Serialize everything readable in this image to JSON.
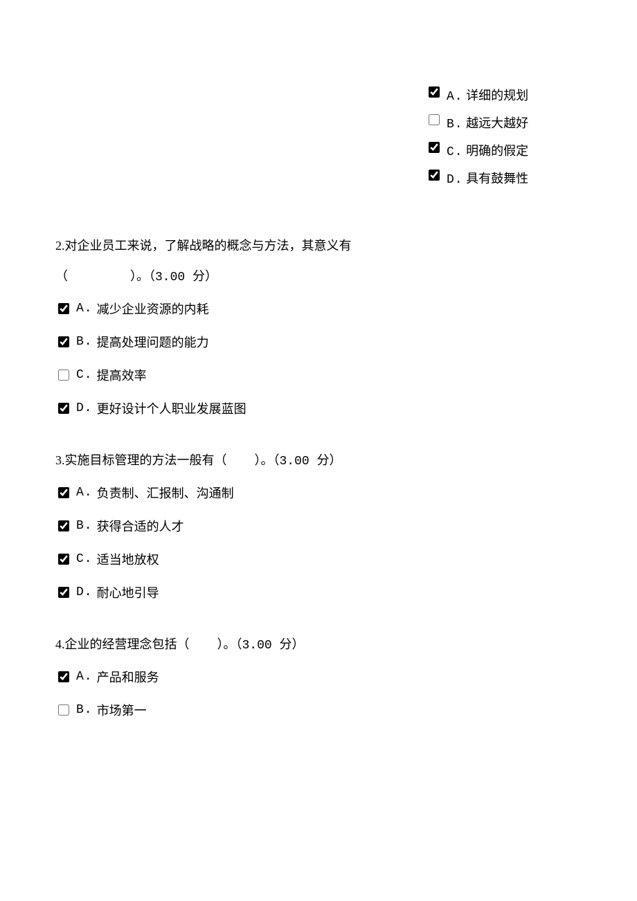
{
  "q1_options": [
    {
      "letter": "A.",
      "text": "详细的规划",
      "checked": true
    },
    {
      "letter": "B.",
      "text": "越远大越好",
      "checked": false
    },
    {
      "letter": "C.",
      "text": "明确的假定",
      "checked": true
    },
    {
      "letter": "D.",
      "text": "具有鼓舞性",
      "checked": true
    }
  ],
  "q2": {
    "stem_line1": "2.对企业员工来说，了解战略的概念与方法，其意义有",
    "stem_line2_prefix": "（",
    "stem_line2_suffix": "）。",
    "score": "（3.00 分）",
    "options": [
      {
        "letter": "A.",
        "text": "减少企业资源的内耗",
        "checked": true
      },
      {
        "letter": "B.",
        "text": "提高处理问题的能力",
        "checked": true
      },
      {
        "letter": "C.",
        "text": "提高效率",
        "checked": false
      },
      {
        "letter": "D.",
        "text": "更好设计个人职业发展蓝图",
        "checked": true
      }
    ]
  },
  "q3": {
    "stem_prefix": "3.实施目标管理的方法一般有（",
    "stem_suffix": "）。",
    "score": "（3.00 分）",
    "options": [
      {
        "letter": "A.",
        "text": "负责制、汇报制、沟通制",
        "checked": true
      },
      {
        "letter": "B.",
        "text": "获得合适的人才",
        "checked": true
      },
      {
        "letter": "C.",
        "text": "适当地放权",
        "checked": true
      },
      {
        "letter": "D.",
        "text": "耐心地引导",
        "checked": true
      }
    ]
  },
  "q4": {
    "stem_prefix": "4.企业的经营理念包括（",
    "stem_suffix": "）。",
    "score": "（3.00 分）",
    "options": [
      {
        "letter": "A.",
        "text": "产品和服务",
        "checked": true
      },
      {
        "letter": "B.",
        "text": "市场第一",
        "checked": false
      }
    ]
  }
}
